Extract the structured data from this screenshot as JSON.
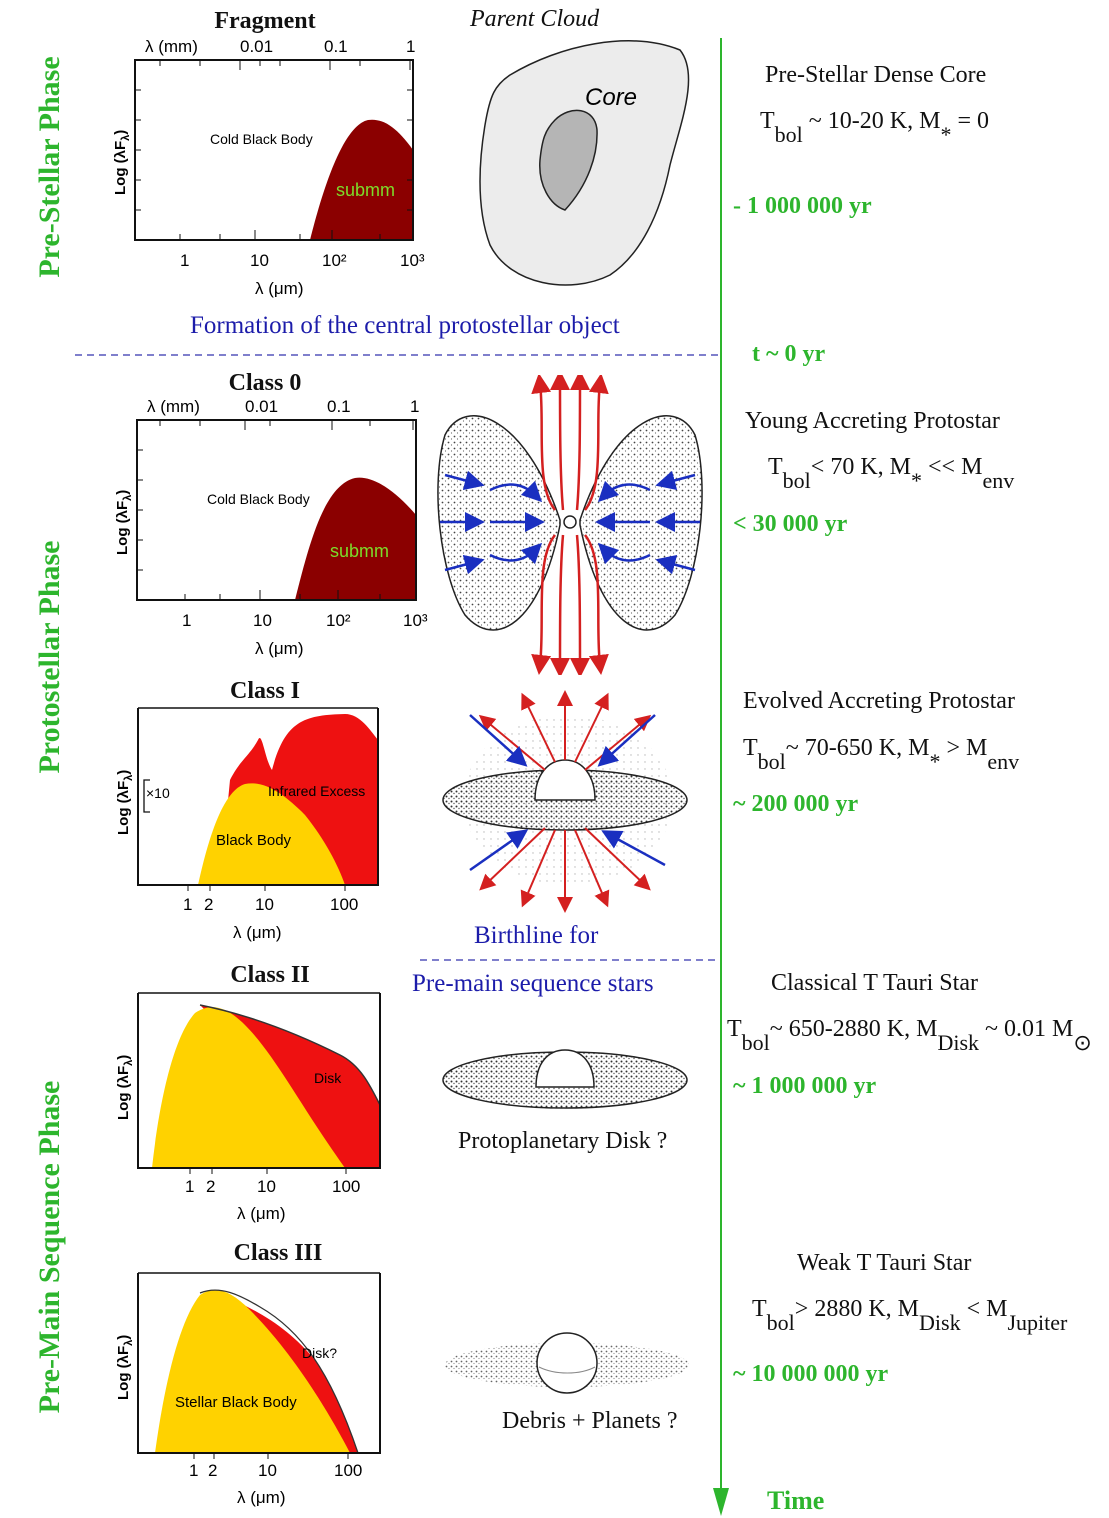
{
  "phases": {
    "pre_stellar": "Pre-Stellar Phase",
    "protostellar": "Protostellar Phase",
    "pre_main_sequence": "Pre-Main Sequence Phase"
  },
  "seds": [
    {
      "title": "Fragment",
      "top_axis_label": "λ (mm)",
      "top_ticks": [
        "0.01",
        "0.1",
        "1"
      ],
      "y_label": "Log (λF",
      "y_label_sub": "λ",
      "y_label_end": ")",
      "x_ticks": [
        "1",
        "10",
        "10²",
        "10³"
      ],
      "x_label": "λ (μm)",
      "region_labels": [
        "Cold Black Body",
        "submm"
      ]
    },
    {
      "title": "Class 0",
      "top_axis_label": "λ (mm)",
      "top_ticks": [
        "0.01",
        "0.1",
        "1"
      ],
      "y_label": "Log (λF",
      "y_label_sub": "λ",
      "y_label_end": ")",
      "x_ticks": [
        "1",
        "10",
        "10²",
        "10³"
      ],
      "x_label": "λ (μm)",
      "region_labels": [
        "Cold Black Body",
        "submm"
      ]
    },
    {
      "title": "Class I",
      "y_label": "Log (λF",
      "y_label_sub": "λ",
      "y_label_end": ")",
      "scale_mark": "×10",
      "x_ticks": [
        "1",
        "2",
        "10",
        "100"
      ],
      "x_label": "λ (μm)",
      "region_labels": [
        "Infrared Excess",
        "Black Body"
      ]
    },
    {
      "title": "Class II",
      "y_label": "Log (λF",
      "y_label_sub": "λ",
      "y_label_end": ")",
      "x_ticks": [
        "1",
        "2",
        "10",
        "100"
      ],
      "x_label": "λ (μm)",
      "region_labels": [
        "Disk"
      ]
    },
    {
      "title": "Class III",
      "y_label": "Log (λF",
      "y_label_sub": "λ",
      "y_label_end": ")",
      "x_ticks": [
        "1",
        "2",
        "10",
        "100"
      ],
      "x_label": "λ (μm)",
      "region_labels": [
        "Disk?",
        "Stellar Black Body"
      ]
    }
  ],
  "illustrations": {
    "parent_cloud": "Parent Cloud",
    "core": "Core",
    "protoplanetary": "Protoplanetary Disk ?",
    "debris": "Debris + Planets ?"
  },
  "transitions": {
    "formation": "Formation of the central protostellar object",
    "birthline_1": "Birthline for",
    "birthline_2": "Pre-main sequence stars"
  },
  "timeline": {
    "axis_label": "Time",
    "marks": [
      "- 1 000 000 yr",
      "t ~ 0 yr",
      "< 30 000 yr",
      "~ 200 000 yr",
      "~ 1 000 000 yr",
      "~ 10 000 000 yr"
    ]
  },
  "stages": [
    {
      "name": "Pre-Stellar Dense Core",
      "p": [
        {
          "t": "T"
        },
        {
          "s": "bol"
        },
        {
          "t": " ~ 10-20 K,  M"
        },
        {
          "s": "*"
        },
        {
          "t": " = 0"
        }
      ]
    },
    {
      "name": "Young Accreting Protostar",
      "p": [
        {
          "t": "T"
        },
        {
          "s": "bol"
        },
        {
          "t": "< 70 K,  M"
        },
        {
          "s": "*"
        },
        {
          "t": " << M"
        },
        {
          "s": "env"
        }
      ]
    },
    {
      "name": "Evolved Accreting Protostar",
      "p": [
        {
          "t": "T"
        },
        {
          "s": "bol"
        },
        {
          "t": "~ 70-650 K,  M"
        },
        {
          "s": "*"
        },
        {
          "t": " > M"
        },
        {
          "s": "env"
        }
      ]
    },
    {
      "name": "Classical T Tauri Star",
      "p": [
        {
          "t": "T"
        },
        {
          "s": "bol"
        },
        {
          "t": "~ 650-2880 K,  M"
        },
        {
          "s": "Disk"
        },
        {
          "t": " ~ 0.01 M"
        },
        {
          "s": "⊙"
        }
      ]
    },
    {
      "name": "Weak T Tauri Star",
      "p": [
        {
          "t": "T"
        },
        {
          "s": "bol"
        },
        {
          "t": "> 2880 K,  M"
        },
        {
          "s": "Disk"
        },
        {
          "t": " < M"
        },
        {
          "s": "Jupiter"
        }
      ]
    }
  ],
  "colors": {
    "green": "#2db52d",
    "blue": "#1c1caa",
    "dark_red": "#8b0000",
    "red": "#ee1111",
    "yellow": "#ffd200",
    "outflow": "#d42020",
    "infall": "#1a2fc0"
  }
}
